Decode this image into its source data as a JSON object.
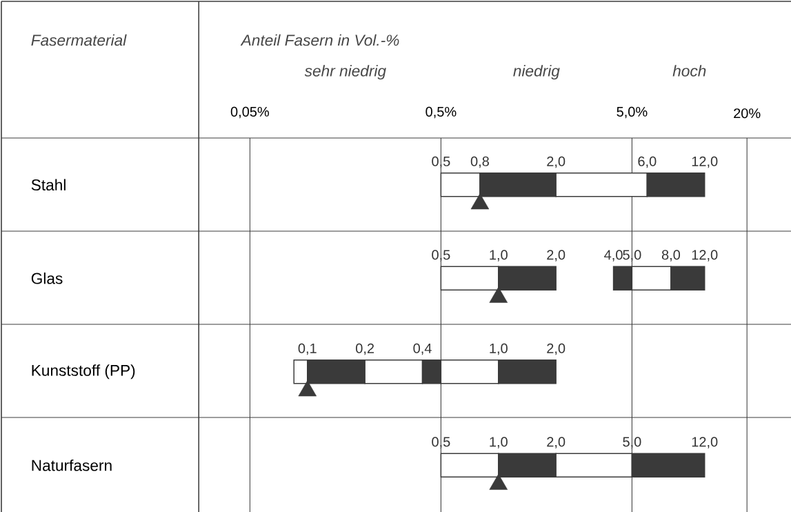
{
  "chart_data": {
    "type": "bar",
    "orientation": "horizontal",
    "log": "x",
    "ylabel": "Fasermaterial",
    "xlabel": "Anteil Fasern in Vol.-%",
    "categories": [
      "Stahl",
      "Glas",
      "Kunststoff (PP)",
      "Naturfasern"
    ],
    "xlim": [
      0.0025,
      34
    ],
    "xticks": [
      {
        "value": 0.05,
        "label": "0,05%"
      },
      {
        "value": 0.5,
        "label": "0,5%"
      },
      {
        "value": 5.0,
        "label": "5,0%"
      },
      {
        "value": 20,
        "label": "20%"
      }
    ],
    "grid": "x",
    "ref_lines": [
      {
        "axis": "x",
        "value": 0.027
      }
    ],
    "series": [
      {
        "base": [
          0.5,
          0.5,
          0.085,
          0.5
        ],
        "values": [
          0.3,
          0.5,
          0.015,
          0.5
        ],
        "colors": [
          "#ffffff",
          "#ffffff",
          "#ffffff",
          "#ffffff"
        ]
      },
      {
        "base": [
          0.8,
          1.0,
          0.1,
          1.0
        ],
        "values": [
          1.2,
          1.0,
          0.1,
          1.0
        ],
        "colors": [
          "#3a3a3a",
          "#3a3a3a",
          "#3a3a3a",
          "#3a3a3a"
        ]
      },
      {
        "base": [
          2.0,
          4.0,
          0.2,
          2.0
        ],
        "values": [
          4.0,
          1.0,
          0.2,
          3.0
        ],
        "colors": [
          "#ffffff",
          "#3a3a3a",
          "#ffffff",
          "#ffffff"
        ]
      },
      {
        "base": [
          6.0,
          5.0,
          0.4,
          5.0
        ],
        "values": [
          6.0,
          3.0,
          0.1,
          7.0
        ],
        "colors": [
          "#3a3a3a",
          "#ffffff",
          "#3a3a3a",
          "#3a3a3a"
        ]
      },
      {
        "base": [
          null,
          8.0,
          0.5,
          null
        ],
        "values": [
          null,
          4.0,
          0.5,
          null
        ],
        "colors": [
          null,
          "#3a3a3a",
          "#ffffff",
          null
        ]
      },
      {
        "base": [
          null,
          null,
          1.0,
          null
        ],
        "values": [
          null,
          null,
          1.0,
          null
        ],
        "colors": [
          null,
          null,
          "#3a3a3a",
          null
        ]
      },
      {
        "type": "scatter",
        "marker": "triangle",
        "color": "#3a3a3a",
        "values": [
          0.8,
          1.0,
          0.1,
          1.0
        ]
      }
    ],
    "annotations": [
      "sehr niedrig",
      "niedrig",
      "hoch",
      {
        "text": "0,5",
        "x": 0.5,
        "y": "Stahl"
      },
      {
        "text": "0,8",
        "x": 0.8,
        "y": "Stahl"
      },
      {
        "text": "2,0",
        "x": 2.0,
        "y": "Stahl"
      },
      {
        "text": "6,0",
        "x": 6.0,
        "y": "Stahl"
      },
      {
        "text": "12,0",
        "x": 12.0,
        "y": "Stahl"
      },
      {
        "text": "0,5",
        "x": 0.5,
        "y": "Glas"
      },
      {
        "text": "1,0",
        "x": 1.0,
        "y": "Glas"
      },
      {
        "text": "2,0",
        "x": 2.0,
        "y": "Glas"
      },
      {
        "text": "4,0",
        "x": 4.0,
        "y": "Glas"
      },
      {
        "text": "5,0",
        "x": 5.0,
        "y": "Glas"
      },
      {
        "text": "8,0",
        "x": 8.0,
        "y": "Glas"
      },
      {
        "text": "12,0",
        "x": 12.0,
        "y": "Glas"
      },
      {
        "text": "0,1",
        "x": 0.1,
        "y": "Kunststoff (PP)"
      },
      {
        "text": "0,2",
        "x": 0.2,
        "y": "Kunststoff (PP)"
      },
      {
        "text": "0,4",
        "x": 0.4,
        "y": "Kunststoff (PP)"
      },
      {
        "text": "1,0",
        "x": 1.0,
        "y": "Kunststoff (PP)"
      },
      {
        "text": "2,0",
        "x": 2.0,
        "y": "Kunststoff (PP)"
      },
      {
        "text": "0,5",
        "x": 0.5,
        "y": "Naturfasern"
      },
      {
        "text": "1,0",
        "x": 1.0,
        "y": "Naturfasern"
      },
      {
        "text": "2,0",
        "x": 2.0,
        "y": "Naturfasern"
      },
      {
        "text": "5,0",
        "x": 5.0,
        "y": "Naturfasern"
      },
      {
        "text": "12,0",
        "x": 12.0,
        "y": "Naturfasern"
      }
    ]
  }
}
